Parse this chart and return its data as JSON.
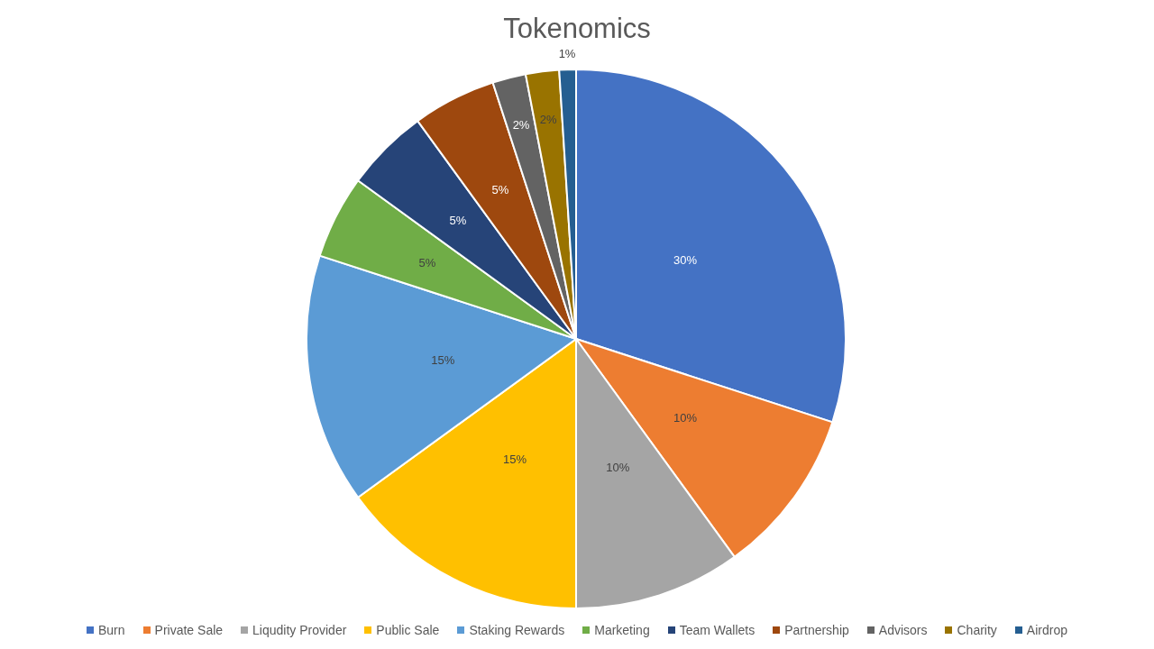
{
  "chart_data": {
    "type": "pie",
    "title": "Tokenomics",
    "categories": [
      "Burn",
      "Private Sale",
      "Liqudity Provider",
      "Public Sale",
      "Staking Rewards",
      "Marketing",
      "Team Wallets",
      "Partnership",
      "Advisors",
      "Charity",
      "Airdrop"
    ],
    "values": [
      30,
      10,
      10,
      15,
      15,
      5,
      5,
      5,
      2,
      2,
      1
    ],
    "value_labels": [
      "30%",
      "10%",
      "10%",
      "15%",
      "15%",
      "5%",
      "5%",
      "5%",
      "2%",
      "2%",
      "1%"
    ],
    "colors": [
      "#4472c4",
      "#ed7d31",
      "#a5a5a5",
      "#ffc000",
      "#5b9bd5",
      "#70ad47",
      "#264478",
      "#9e480e",
      "#636363",
      "#997300",
      "#255e91"
    ],
    "legend": "bottom"
  }
}
